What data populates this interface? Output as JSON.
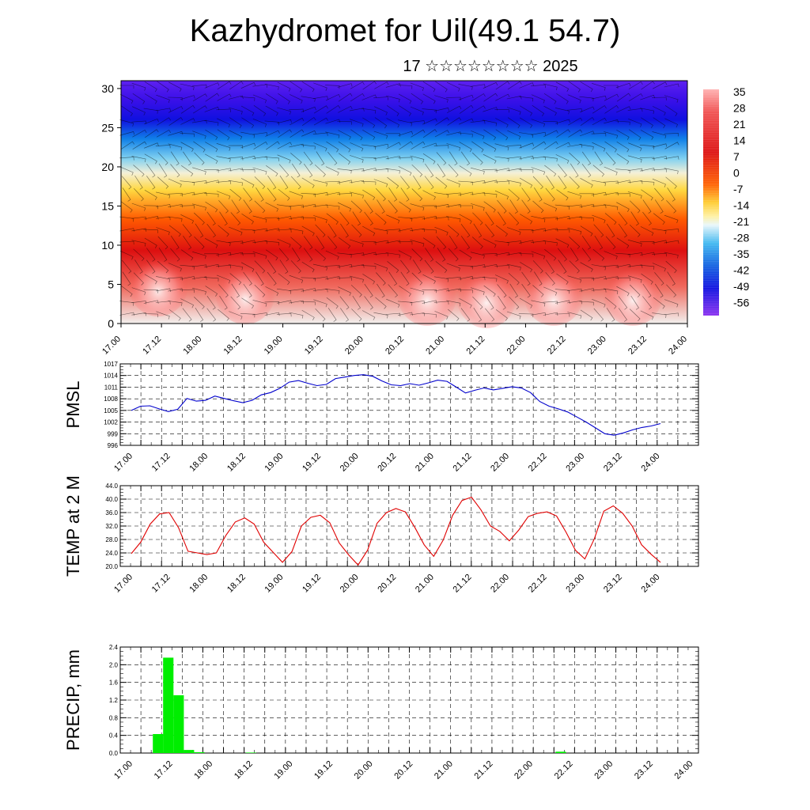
{
  "header": {
    "title": "Kazhydromet for Uil(49.1 54.7)",
    "subtitle": "17 ☆☆☆☆☆☆☆☆ 2025"
  },
  "colors": {
    "pmsl_line": "#0000cc",
    "temp_line": "#e00000",
    "precip_bar": "#00ee00",
    "colorbar_top": "#ff8080",
    "colorbar_bottom": "#7a00ff"
  },
  "chart_data": [
    {
      "type": "heatmap",
      "title": "",
      "xlabel": "",
      "ylabel": "",
      "x_tick_labels": [
        "17.00",
        "17.12",
        "18.00",
        "18.12",
        "19.00",
        "19.12",
        "20.00",
        "20.12",
        "21.00",
        "21.12",
        "22.00",
        "22.12",
        "23.00",
        "23.12",
        "24.00"
      ],
      "y_ticks": [
        0,
        5,
        10,
        15,
        20,
        25,
        30
      ],
      "ylim": [
        0,
        31
      ],
      "colorbar_labels": [
        "35",
        "28",
        "21",
        "14",
        "7",
        "0",
        "-7",
        "-14",
        "-21",
        "-28",
        "-35",
        "-42",
        "-49",
        "-56"
      ],
      "colorbar_values": [
        35,
        28,
        21,
        14,
        7,
        0,
        -7,
        -14,
        -21,
        -28,
        -35,
        -42,
        -49,
        -56
      ],
      "overlay": "wind barbs"
    },
    {
      "type": "line",
      "ylabel": "PMSL",
      "x_tick_labels": [
        "17.00",
        "17.12",
        "18.00",
        "18.12",
        "19.00",
        "19.12",
        "20.00",
        "20.12",
        "21.00",
        "21.12",
        "22.00",
        "22.12",
        "23.00",
        "23.12",
        "24.00"
      ],
      "y_ticks": [
        996,
        999,
        1002,
        1005,
        1008,
        1011,
        1014,
        1017
      ],
      "ylim": [
        996,
        1017
      ],
      "series": [
        {
          "values": [
            1005.0,
            1006.1,
            1006.2,
            1005.4,
            1004.7,
            1005.3,
            1008.1,
            1007.4,
            1007.6,
            1008.7,
            1008.1,
            1007.5,
            1007.0,
            1007.6,
            1009.0,
            1009.6,
            1010.7,
            1012.3,
            1012.7,
            1012.0,
            1011.4,
            1011.7,
            1013.2,
            1013.6,
            1014.0,
            1014.2,
            1013.8,
            1012.6,
            1011.6,
            1011.4,
            1011.9,
            1011.5,
            1012.1,
            1012.8,
            1012.5,
            1011.0,
            1009.5,
            1010.2,
            1010.8,
            1010.3,
            1010.7,
            1011.1,
            1010.8,
            1009.6,
            1007.3,
            1006.1,
            1005.4,
            1004.6,
            1003.3,
            1002.0,
            1000.5,
            999.0,
            998.6,
            999.2,
            1000.0,
            1000.6,
            1001.0,
            1001.6
          ]
        }
      ]
    },
    {
      "type": "line",
      "ylabel": "TEMP at 2 M",
      "x_tick_labels": [
        "17.00",
        "17.12",
        "18.00",
        "18.12",
        "19.00",
        "19.12",
        "20.00",
        "20.12",
        "21.00",
        "21.12",
        "22.00",
        "22.12",
        "23.00",
        "23.12",
        "24.00"
      ],
      "y_ticks": [
        "20.0",
        "24.0",
        "28.0",
        "32.0",
        "36.0",
        "40.0",
        "44.0"
      ],
      "ylim": [
        20,
        44
      ],
      "series": [
        {
          "values": [
            23.8,
            27.2,
            32.6,
            35.6,
            36.0,
            31.5,
            24.5,
            24.0,
            23.5,
            24.0,
            29.2,
            33.2,
            34.4,
            32.6,
            27.2,
            24.2,
            21.2,
            24.4,
            32.0,
            34.6,
            35.2,
            33.0,
            27.0,
            23.4,
            20.4,
            24.8,
            32.8,
            36.0,
            37.2,
            36.2,
            31.6,
            26.4,
            23.0,
            27.8,
            35.2,
            39.6,
            40.6,
            36.8,
            32.0,
            30.4,
            27.6,
            30.8,
            34.8,
            35.8,
            36.2,
            35.0,
            30.2,
            24.8,
            22.2,
            28.2,
            36.4,
            38.0,
            35.8,
            32.0,
            26.4,
            23.6,
            21.2
          ]
        }
      ]
    },
    {
      "type": "bar",
      "ylabel": "PRECIP, mm",
      "x_tick_labels": [
        "17.00",
        "17.12",
        "18.00",
        "18.12",
        "19.00",
        "19.12",
        "20.00",
        "20.12",
        "21.00",
        "21.12",
        "22.00",
        "22.12",
        "23.00",
        "23.12",
        "24.00"
      ],
      "y_ticks": [
        "0.0",
        "0.4",
        "0.8",
        "1.2",
        "1.6",
        "2.0",
        "2.4"
      ],
      "ylim": [
        0,
        2.4
      ],
      "bar_width_hours": 3,
      "bars": [
        {
          "t": 12,
          "value": 0.43
        },
        {
          "t": 15,
          "value": 2.16
        },
        {
          "t": 18,
          "value": 1.31
        },
        {
          "t": 21,
          "value": 0.07
        },
        {
          "t": 24,
          "value": 0.02
        },
        {
          "t": 39,
          "value": 0.01
        },
        {
          "t": 129,
          "value": 0.03
        }
      ]
    }
  ]
}
